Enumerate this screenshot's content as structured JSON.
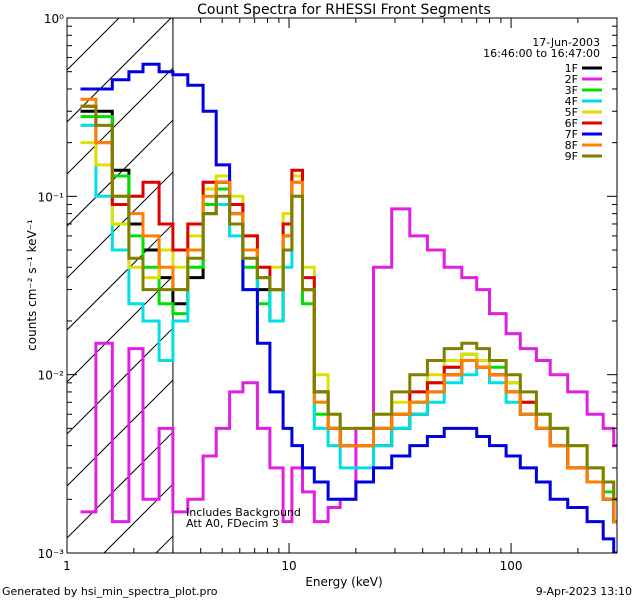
{
  "chart_data": {
    "type": "line",
    "title": "Count Spectra for RHESSI Front Segments",
    "xlabel": "Energy (keV)",
    "ylabel": "counts cm⁻² s⁻¹ keV⁻¹",
    "xscale": "log",
    "yscale": "log",
    "xlim": [
      1,
      300
    ],
    "ylim": [
      0.001,
      1
    ],
    "x_tick_labels": [
      "1",
      "10",
      "100"
    ],
    "y_tick_labels": [
      "10⁻³",
      "10⁻²",
      "10⁻¹",
      "10⁰"
    ],
    "date": "17-Jun-2003",
    "time_range": "16:46:00 to 16:47:00",
    "annotation_line1": "Includes Background",
    "annotation_line2": "Att A0, FDecim 3",
    "hatched_region_keV": [
      1,
      3
    ],
    "series": [
      {
        "name": "1F",
        "color": "#000000",
        "x": [
          1.15,
          1.35,
          1.6,
          1.9,
          2.2,
          2.6,
          3.0,
          3.5,
          4.1,
          4.7,
          5.4,
          6.2,
          7.2,
          8.2,
          9.4,
          10.3,
          11.5,
          13,
          15,
          17,
          20,
          24,
          29,
          35,
          42,
          50,
          60,
          70,
          80,
          95,
          110,
          130,
          150,
          180,
          220,
          260,
          290
        ],
        "y": [
          0.3,
          0.3,
          0.14,
          0.07,
          0.05,
          0.035,
          0.025,
          0.035,
          0.08,
          0.12,
          0.09,
          0.05,
          0.03,
          0.02,
          0.06,
          0.13,
          0.03,
          0.008,
          0.005,
          0.004,
          0.004,
          0.004,
          0.005,
          0.006,
          0.008,
          0.01,
          0.012,
          0.012,
          0.01,
          0.008,
          0.006,
          0.005,
          0.004,
          0.003,
          0.0025,
          0.002,
          0.0015
        ]
      },
      {
        "name": "2F",
        "color": "#e020e0",
        "x": [
          1.15,
          1.35,
          1.6,
          1.9,
          2.2,
          2.6,
          3.0,
          3.5,
          4.1,
          4.7,
          5.4,
          6.2,
          7.2,
          8.2,
          9.4,
          10.3,
          11.5,
          13,
          15,
          17,
          20,
          24,
          29,
          35,
          42,
          50,
          60,
          70,
          80,
          95,
          110,
          130,
          150,
          180,
          220,
          260,
          290
        ],
        "y": [
          0.0017,
          0.015,
          0.0015,
          0.014,
          0.002,
          0.005,
          0.0017,
          0.002,
          0.0035,
          0.005,
          0.008,
          0.009,
          0.005,
          0.003,
          0.0015,
          0.003,
          0.0022,
          0.0015,
          0.0018,
          0.002,
          0.005,
          0.04,
          0.085,
          0.06,
          0.05,
          0.04,
          0.035,
          0.03,
          0.022,
          0.017,
          0.014,
          0.012,
          0.01,
          0.008,
          0.006,
          0.005,
          0.004
        ]
      },
      {
        "name": "3F",
        "color": "#00e000",
        "x": [
          1.15,
          1.35,
          1.6,
          1.9,
          2.2,
          2.6,
          3.0,
          3.5,
          4.1,
          4.7,
          5.4,
          6.2,
          7.2,
          8.2,
          9.4,
          10.3,
          11.5,
          13,
          15,
          17,
          20,
          24,
          29,
          35,
          42,
          50,
          60,
          70,
          80,
          95,
          110,
          130,
          150,
          180,
          220,
          260,
          290
        ],
        "y": [
          0.28,
          0.28,
          0.13,
          0.06,
          0.04,
          0.025,
          0.022,
          0.04,
          0.09,
          0.11,
          0.08,
          0.04,
          0.025,
          0.03,
          0.07,
          0.12,
          0.025,
          0.006,
          0.005,
          0.004,
          0.004,
          0.005,
          0.006,
          0.007,
          0.009,
          0.011,
          0.013,
          0.012,
          0.011,
          0.009,
          0.007,
          0.006,
          0.005,
          0.004,
          0.003,
          0.0022,
          0.0015
        ]
      },
      {
        "name": "4F",
        "color": "#00e0e0",
        "x": [
          1.15,
          1.35,
          1.6,
          1.9,
          2.2,
          2.6,
          3.0,
          3.5,
          4.1,
          4.7,
          5.4,
          6.2,
          7.2,
          8.2,
          9.4,
          10.3,
          11.5,
          13,
          15,
          17,
          20,
          24,
          29,
          35,
          42,
          50,
          60,
          70,
          80,
          95,
          110,
          130,
          150,
          180,
          220,
          260,
          290
        ],
        "y": [
          0.25,
          0.1,
          0.05,
          0.025,
          0.02,
          0.012,
          0.02,
          0.05,
          0.12,
          0.09,
          0.06,
          0.03,
          0.035,
          0.02,
          0.04,
          0.1,
          0.03,
          0.005,
          0.004,
          0.003,
          0.003,
          0.004,
          0.005,
          0.006,
          0.007,
          0.009,
          0.01,
          0.011,
          0.009,
          0.007,
          0.006,
          0.005,
          0.004,
          0.003,
          0.0025,
          0.002,
          0.0015
        ]
      },
      {
        "name": "5F",
        "color": "#e0e000",
        "x": [
          1.15,
          1.35,
          1.6,
          1.9,
          2.2,
          2.6,
          3.0,
          3.5,
          4.1,
          4.7,
          5.4,
          6.2,
          7.2,
          8.2,
          9.4,
          10.3,
          11.5,
          13,
          15,
          17,
          20,
          24,
          29,
          35,
          42,
          50,
          60,
          70,
          80,
          95,
          110,
          130,
          150,
          180,
          220,
          260,
          290
        ],
        "y": [
          0.2,
          0.15,
          0.07,
          0.04,
          0.035,
          0.05,
          0.04,
          0.06,
          0.11,
          0.13,
          0.1,
          0.06,
          0.04,
          0.04,
          0.08,
          0.13,
          0.04,
          0.01,
          0.006,
          0.005,
          0.005,
          0.006,
          0.007,
          0.008,
          0.01,
          0.012,
          0.013,
          0.012,
          0.01,
          0.009,
          0.007,
          0.006,
          0.005,
          0.004,
          0.003,
          0.0025,
          0.002
        ]
      },
      {
        "name": "6F",
        "color": "#e00000",
        "x": [
          1.15,
          1.35,
          1.6,
          1.9,
          2.2,
          2.6,
          3.0,
          3.5,
          4.1,
          4.7,
          5.4,
          6.2,
          7.2,
          8.2,
          9.4,
          10.3,
          11.5,
          13,
          15,
          17,
          20,
          24,
          29,
          35,
          42,
          50,
          60,
          70,
          80,
          95,
          110,
          130,
          150,
          180,
          220,
          260,
          290
        ],
        "y": [
          0.32,
          0.2,
          0.09,
          0.1,
          0.12,
          0.07,
          0.05,
          0.07,
          0.12,
          0.12,
          0.09,
          0.06,
          0.04,
          0.03,
          0.07,
          0.14,
          0.035,
          0.008,
          0.005,
          0.004,
          0.004,
          0.005,
          0.006,
          0.008,
          0.009,
          0.011,
          0.012,
          0.011,
          0.01,
          0.008,
          0.007,
          0.005,
          0.004,
          0.003,
          0.0025,
          0.002,
          0.0015
        ]
      },
      {
        "name": "7F",
        "color": "#0000e0",
        "x": [
          1.15,
          1.35,
          1.6,
          1.9,
          2.2,
          2.6,
          3.0,
          3.5,
          4.1,
          4.7,
          5.4,
          6.2,
          7.2,
          8.2,
          9.4,
          10.3,
          11.5,
          13,
          15,
          17,
          20,
          24,
          29,
          35,
          42,
          50,
          60,
          70,
          80,
          95,
          110,
          130,
          150,
          180,
          220,
          260,
          290
        ],
        "y": [
          0.4,
          0.4,
          0.45,
          0.5,
          0.55,
          0.5,
          0.48,
          0.42,
          0.3,
          0.15,
          0.08,
          0.03,
          0.015,
          0.008,
          0.005,
          0.004,
          0.003,
          0.0025,
          0.002,
          0.002,
          0.0025,
          0.003,
          0.0035,
          0.004,
          0.0045,
          0.005,
          0.005,
          0.0045,
          0.004,
          0.0035,
          0.003,
          0.0025,
          0.002,
          0.0018,
          0.0015,
          0.0012,
          0.001
        ]
      },
      {
        "name": "8F",
        "color": "#ff8000",
        "x": [
          1.15,
          1.35,
          1.6,
          1.9,
          2.2,
          2.6,
          3.0,
          3.5,
          4.1,
          4.7,
          5.4,
          6.2,
          7.2,
          8.2,
          9.4,
          10.3,
          11.5,
          13,
          15,
          17,
          20,
          24,
          29,
          35,
          42,
          50,
          60,
          70,
          80,
          95,
          110,
          130,
          150,
          180,
          220,
          260,
          290
        ],
        "y": [
          0.35,
          0.2,
          0.1,
          0.08,
          0.06,
          0.04,
          0.03,
          0.05,
          0.1,
          0.12,
          0.08,
          0.05,
          0.035,
          0.03,
          0.06,
          0.12,
          0.03,
          0.007,
          0.005,
          0.004,
          0.004,
          0.005,
          0.006,
          0.007,
          0.008,
          0.01,
          0.012,
          0.011,
          0.01,
          0.008,
          0.006,
          0.005,
          0.004,
          0.003,
          0.0025,
          0.002,
          0.0015
        ]
      },
      {
        "name": "9F",
        "color": "#808000",
        "x": [
          1.15,
          1.35,
          1.6,
          1.9,
          2.2,
          2.6,
          3.0,
          3.5,
          4.1,
          4.7,
          5.4,
          6.2,
          7.2,
          8.2,
          9.4,
          10.3,
          11.5,
          13,
          15,
          17,
          20,
          24,
          29,
          35,
          42,
          50,
          60,
          70,
          80,
          95,
          110,
          130,
          150,
          180,
          220,
          260,
          290
        ],
        "y": [
          0.32,
          0.25,
          0.1,
          0.045,
          0.03,
          0.03,
          0.03,
          0.045,
          0.08,
          0.1,
          0.07,
          0.045,
          0.035,
          0.03,
          0.05,
          0.1,
          0.03,
          0.008,
          0.006,
          0.005,
          0.005,
          0.006,
          0.008,
          0.01,
          0.012,
          0.014,
          0.015,
          0.014,
          0.012,
          0.01,
          0.008,
          0.006,
          0.005,
          0.004,
          0.003,
          0.0025,
          0.002
        ]
      }
    ]
  },
  "footer": {
    "generated_by": "Generated by hsi_min_spectra_plot.pro",
    "timestamp": "9-Apr-2023 13:10"
  }
}
